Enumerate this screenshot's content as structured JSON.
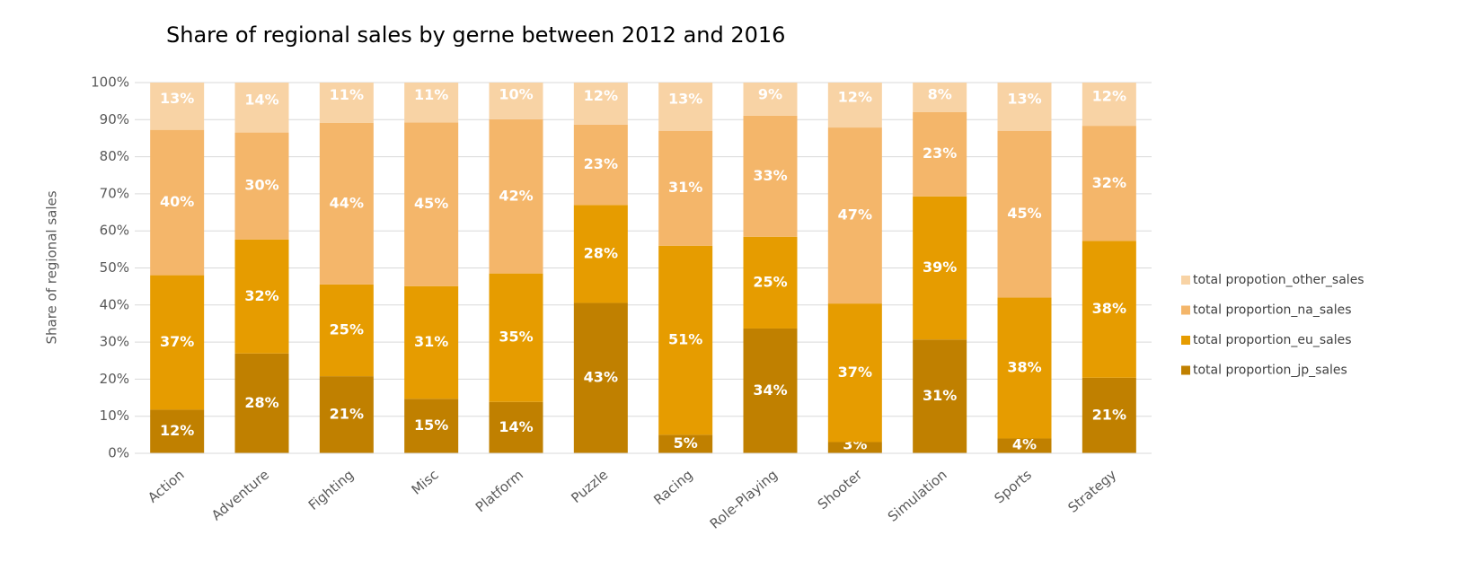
{
  "chart_data": {
    "type": "bar",
    "stacking": "percent",
    "title": "Share of regional sales by gerne between 2012 and 2016",
    "y_label": "Share of regional sales",
    "categories": [
      "Action",
      "Adventure",
      "Fighting",
      "Misc",
      "Platform",
      "Puzzle",
      "Racing",
      "Role-Playing",
      "Shooter",
      "Simulation",
      "Sports",
      "Strategy"
    ],
    "series": [
      {
        "name": "total proportion_jp_sales",
        "color": "#c08000",
        "values": [
          12,
          28,
          21,
          15,
          14,
          43,
          5,
          34,
          3,
          31,
          4,
          21
        ],
        "value_labels": [
          "12%",
          "28%",
          "21%",
          "15%",
          "14%",
          "43%",
          "5%",
          "34%",
          "3%",
          "31%",
          "4%",
          "21%"
        ]
      },
      {
        "name": "total proportion_eu_sales",
        "color": "#e69c00",
        "values": [
          37,
          32,
          25,
          31,
          35,
          28,
          51,
          25,
          37,
          39,
          38,
          38
        ],
        "value_labels": [
          "37%",
          "32%",
          "25%",
          "31%",
          "35%",
          "28%",
          "51%",
          "25%",
          "37%",
          "39%",
          "38%",
          "38%"
        ]
      },
      {
        "name": "total proportion_na_sales",
        "color": "#f4b66a",
        "values": [
          40,
          30,
          44,
          45,
          42,
          23,
          31,
          33,
          47,
          23,
          45,
          32
        ],
        "value_labels": [
          "40%",
          "30%",
          "44%",
          "45%",
          "42%",
          "23%",
          "31%",
          "33%",
          "47%",
          "23%",
          "45%",
          "32%"
        ]
      },
      {
        "name": "total propotion_other_sales",
        "color": "#f8d3a5",
        "values": [
          13,
          14,
          11,
          11,
          10,
          12,
          13,
          9,
          12,
          8,
          13,
          12
        ],
        "value_labels": [
          "13%",
          "14%",
          "11%",
          "11%",
          "10%",
          "12%",
          "13%",
          "9%",
          "12%",
          "8%",
          "13%",
          "12%"
        ]
      }
    ],
    "ylim": [
      0,
      100
    ],
    "yticks": [
      {
        "value": 0,
        "label": "0%"
      },
      {
        "value": 10,
        "label": "10%"
      },
      {
        "value": 20,
        "label": "20%"
      },
      {
        "value": 30,
        "label": "30%"
      },
      {
        "value": 40,
        "label": "40%"
      },
      {
        "value": 50,
        "label": "50%"
      },
      {
        "value": 60,
        "label": "60%"
      },
      {
        "value": 70,
        "label": "70%"
      },
      {
        "value": 80,
        "label": "80%"
      },
      {
        "value": 90,
        "label": "90%"
      },
      {
        "value": 100,
        "label": "100%"
      }
    ],
    "grid": true,
    "legend": "right"
  }
}
